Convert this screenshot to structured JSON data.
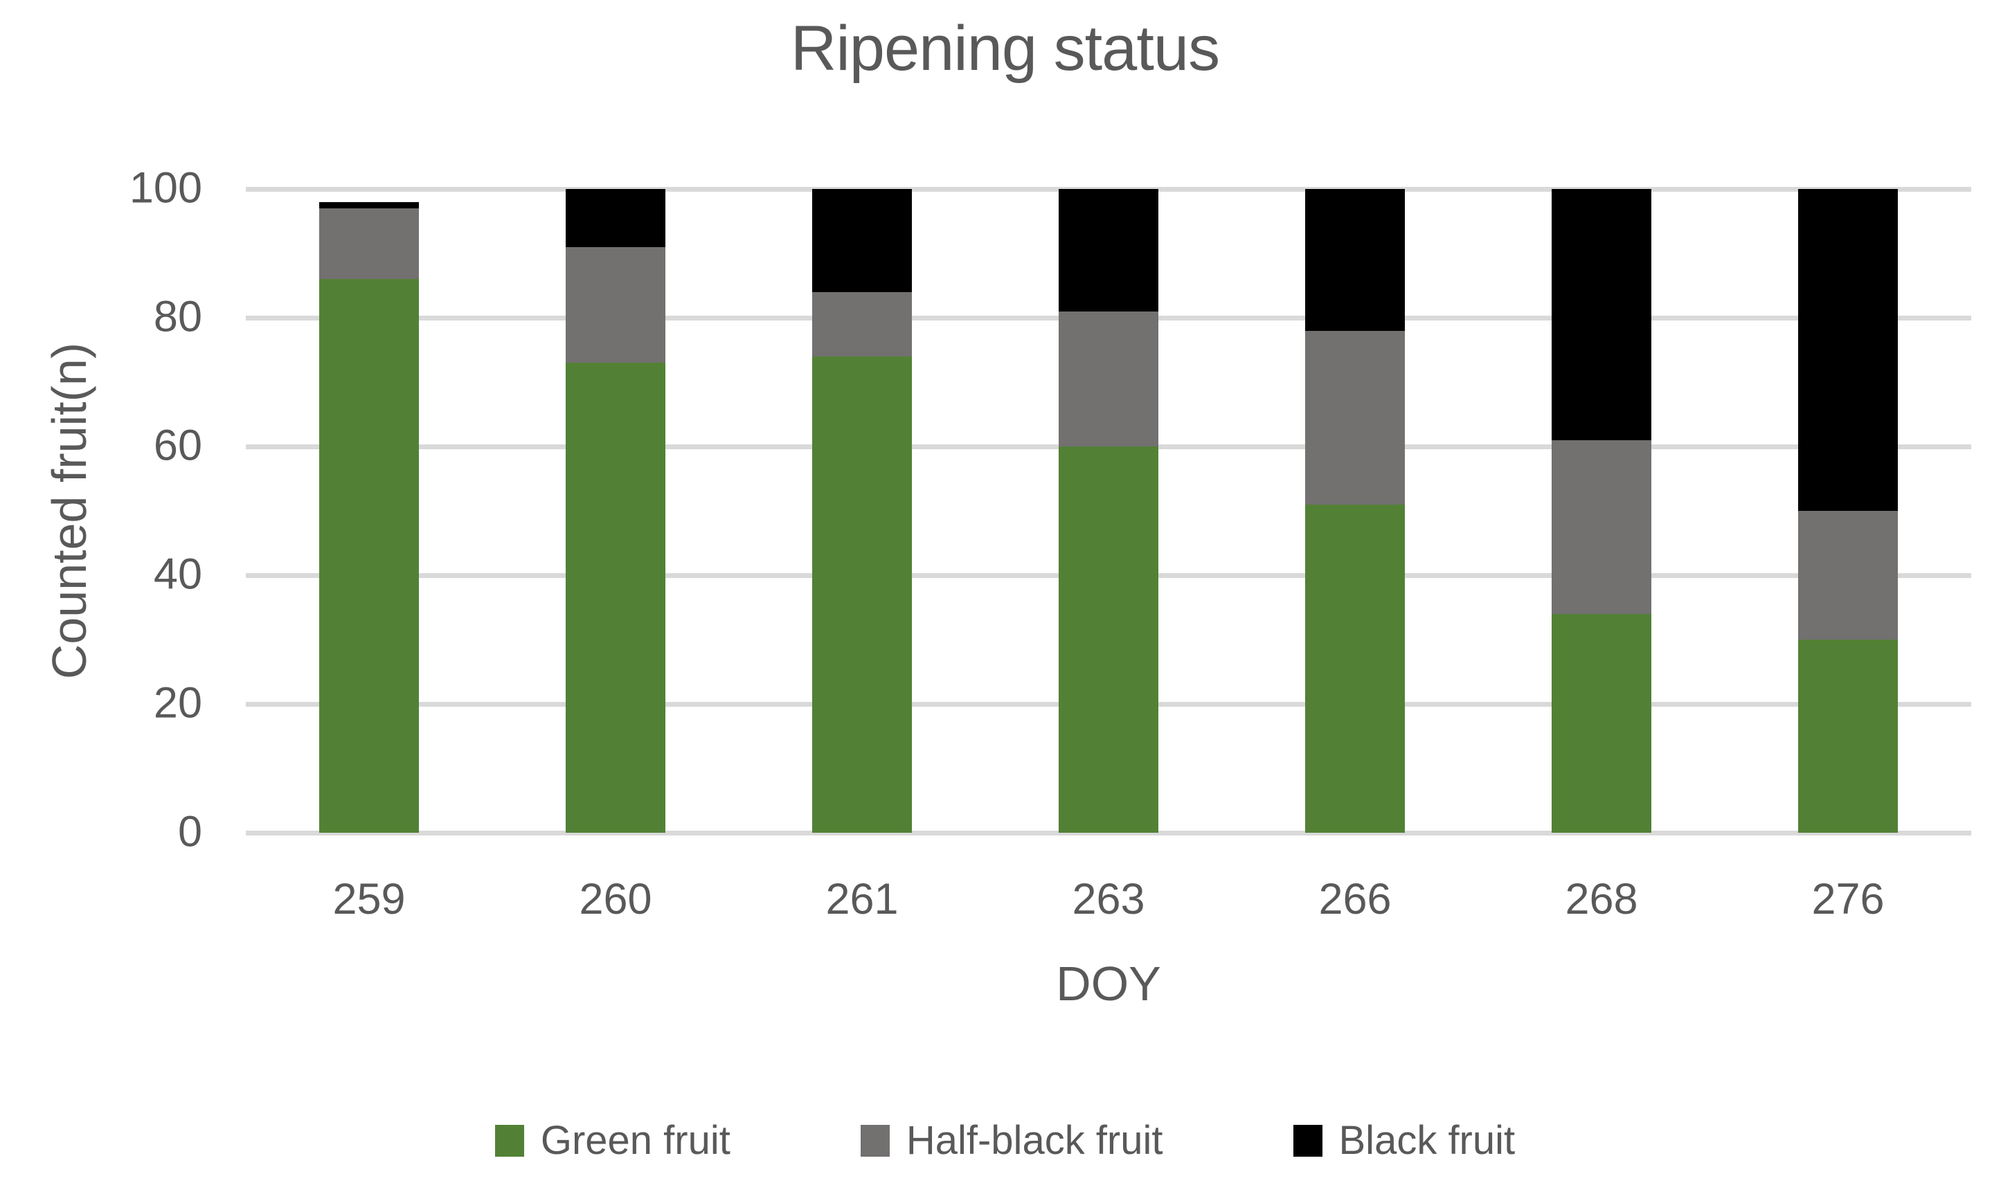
{
  "title": "Ripening status",
  "chart_data": {
    "type": "bar",
    "stacked": true,
    "title": "Ripening status",
    "xlabel": "DOY",
    "ylabel": "Counted fruit(n)",
    "categories": [
      "259",
      "260",
      "261",
      "263",
      "266",
      "268",
      "276"
    ],
    "series": [
      {
        "name": "Green fruit",
        "color": "#528135",
        "values": [
          86,
          73,
          74,
          60,
          51,
          34,
          30
        ]
      },
      {
        "name": "Half-black fruit",
        "color": "#737070",
        "values": [
          11,
          18,
          10,
          21,
          27,
          27,
          20
        ]
      },
      {
        "name": "Black fruit",
        "color": "#000000",
        "values": [
          1,
          9,
          16,
          19,
          22,
          39,
          50
        ]
      }
    ],
    "stack_totals": [
      98,
      100,
      100,
      100,
      100,
      100,
      100
    ],
    "ylim": [
      0,
      100
    ],
    "yticks": [
      0,
      20,
      40,
      60,
      80,
      100
    ],
    "grid": true,
    "legend_position": "bottom"
  },
  "colors": {
    "background": "#FFFFFF",
    "text": "#595959",
    "gridline": "#D9D9D9"
  }
}
